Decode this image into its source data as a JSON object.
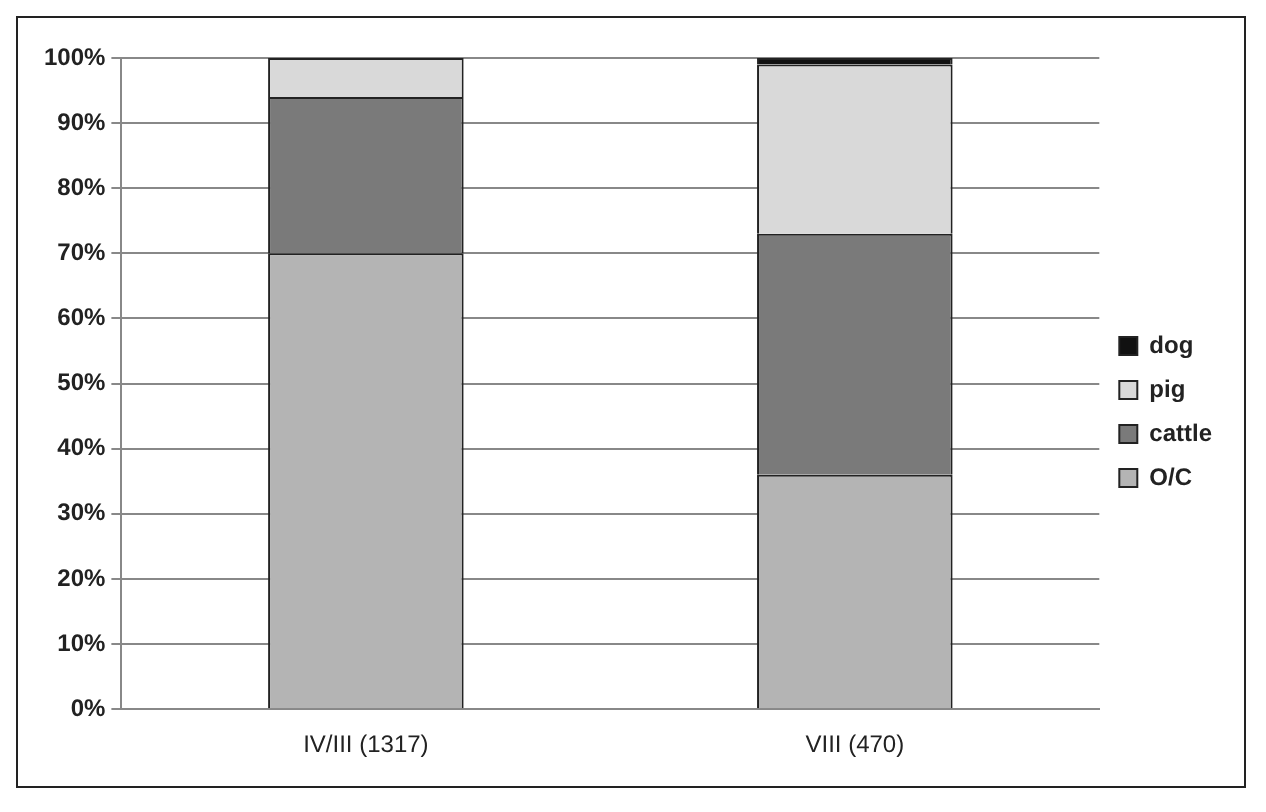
{
  "chart_data": {
    "type": "bar",
    "stacked": true,
    "categories": [
      "IV/III (1317)",
      "VIII (470)"
    ],
    "series": [
      {
        "name": "O/C",
        "color": "#b4b4b4",
        "values": [
          70,
          36
        ]
      },
      {
        "name": "cattle",
        "color": "#7a7a7a",
        "values": [
          24,
          37
        ]
      },
      {
        "name": "pig",
        "color": "#d9d9d9",
        "values": [
          6,
          26
        ]
      },
      {
        "name": "dog",
        "color": "#111111",
        "values": [
          0,
          1
        ]
      }
    ],
    "ylim": [
      0,
      100
    ],
    "yticks": [
      {
        "value": 0,
        "label": "0%"
      },
      {
        "value": 10,
        "label": "10%"
      },
      {
        "value": 20,
        "label": "20%"
      },
      {
        "value": 30,
        "label": "30%"
      },
      {
        "value": 40,
        "label": "40%"
      },
      {
        "value": 50,
        "label": "50%"
      },
      {
        "value": 60,
        "label": "60%"
      },
      {
        "value": 70,
        "label": "70%"
      },
      {
        "value": 80,
        "label": "80%"
      },
      {
        "value": 90,
        "label": "90%"
      },
      {
        "value": 100,
        "label": "100%"
      }
    ],
    "grid": "y",
    "legend": "right"
  }
}
